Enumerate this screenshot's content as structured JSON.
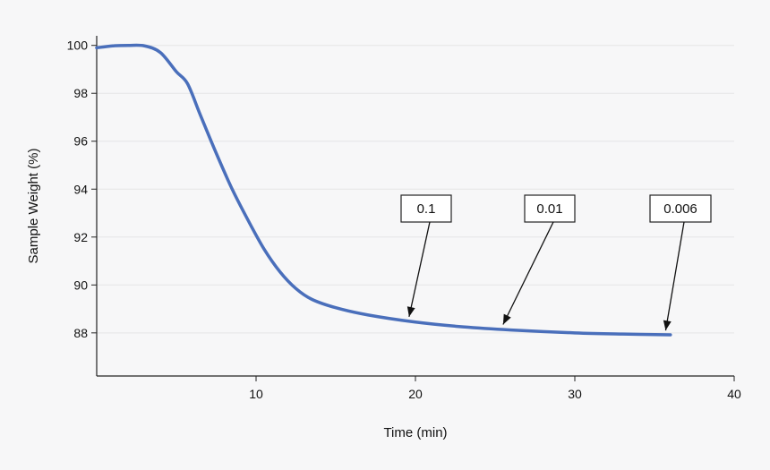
{
  "chart_data": {
    "type": "line",
    "title": "",
    "xlabel": "Time (min)",
    "ylabel": "Sample Weight (%)",
    "xlim": [
      0,
      40
    ],
    "ylim": [
      86.2,
      100.4
    ],
    "xticks": [
      10,
      20,
      30,
      40
    ],
    "yticks": [
      88,
      90,
      92,
      94,
      96,
      98,
      100
    ],
    "grid": "horizontal",
    "colors": {
      "line": "#4a6fbb",
      "grid": "#e6e6e6",
      "axis": "#222222"
    },
    "series": [
      {
        "x": [
          0,
          1,
          2,
          3,
          4,
          5,
          5.7,
          6.5,
          7.5,
          8.5,
          9.5,
          10.5,
          11.5,
          12.5,
          13.5,
          15,
          17,
          20,
          23,
          26,
          30,
          33,
          36
        ],
        "y": [
          99.9,
          99.98,
          100.0,
          99.98,
          99.7,
          98.9,
          98.4,
          97.1,
          95.5,
          94.0,
          92.7,
          91.5,
          90.55,
          89.85,
          89.4,
          89.05,
          88.75,
          88.45,
          88.25,
          88.12,
          88.0,
          87.95,
          87.92
        ]
      }
    ],
    "annotations": [
      {
        "text": "0.1",
        "point": [
          19.6,
          88.52
        ]
      },
      {
        "text": "0.01",
        "point": [
          25.5,
          88.2
        ]
      },
      {
        "text": "0.006",
        "point": [
          35.7,
          87.95
        ]
      }
    ]
  }
}
